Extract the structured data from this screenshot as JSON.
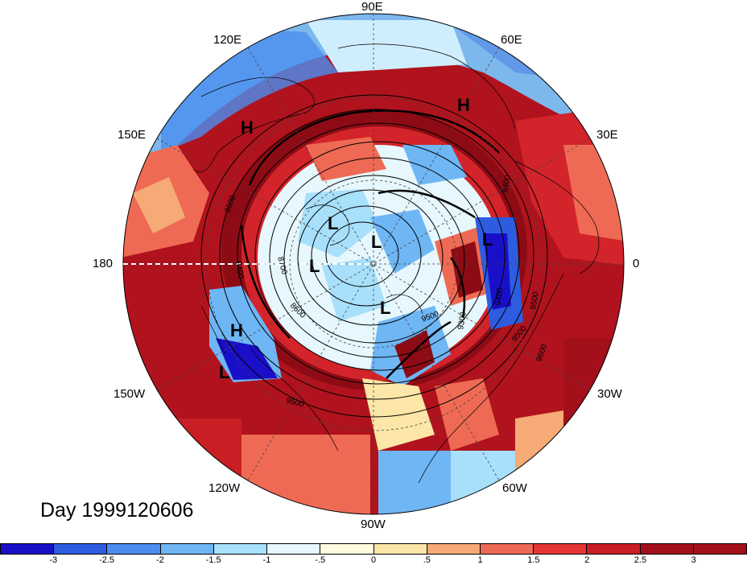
{
  "map": {
    "date_label": "Day 1999120606",
    "lon_labels": {
      "l90e": "90E",
      "l120e": "120E",
      "l60e": "60E",
      "l150e": "150E",
      "l30e": "30E",
      "l180": "180",
      "l0": "0",
      "l150w": "150W",
      "l30w": "30W",
      "l120w": "120W",
      "l60w": "60W",
      "l90w": "90W"
    },
    "contour_labels": [
      "9600",
      "9400",
      "8700",
      "8600",
      "9400",
      "9500",
      "9300",
      "9400",
      "9500",
      "9600",
      "9500",
      "9500"
    ],
    "pressure_centers": [
      {
        "type": "H"
      },
      {
        "type": "H"
      },
      {
        "type": "H"
      },
      {
        "type": "L"
      },
      {
        "type": "L"
      },
      {
        "type": "L"
      },
      {
        "type": "L"
      },
      {
        "type": "L"
      },
      {
        "type": "L"
      }
    ],
    "colorbar": {
      "colors": [
        "#1a0fc8",
        "#2d5ce0",
        "#4b8ef0",
        "#6fb6f5",
        "#a8e0fb",
        "#e6f7fd",
        "#fffbe0",
        "#fce6a8",
        "#f6aa75",
        "#ef6a54",
        "#e53535",
        "#c81e24",
        "#a3101a"
      ],
      "ticks": [
        "-3",
        "-2.5",
        "-2",
        "-1.5",
        "-1",
        "-.5",
        "0",
        ".5",
        "1",
        "1.5",
        "2",
        "2.5",
        "3"
      ]
    }
  }
}
